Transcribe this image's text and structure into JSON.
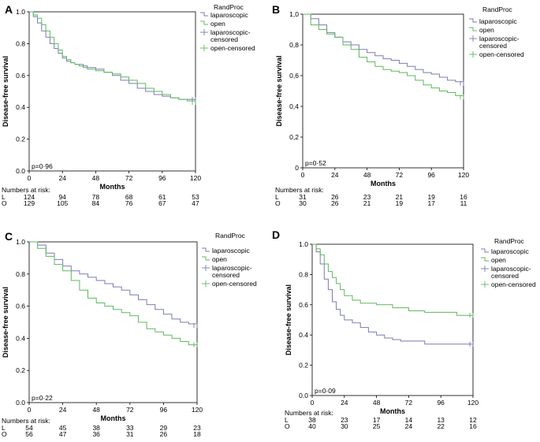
{
  "colors": {
    "laparoscopic": "#7b7bb5",
    "open": "#5fb85f",
    "axis": "#000000"
  },
  "shared": {
    "x_label": "Months",
    "y_label": "Disease-free survival",
    "legend_title": "RandProc",
    "legend_entries": [
      "laparoscopic",
      "open",
      "laparoscopic-censored",
      "open-censored"
    ],
    "legend_entries_display": [
      [
        "laparoscopic"
      ],
      [
        "open"
      ],
      [
        "laparoscopic-",
        "censored"
      ],
      [
        "open-censored"
      ]
    ],
    "risk_header": "Numbers at risk:",
    "risk_row_labels": [
      "L",
      "O"
    ]
  },
  "chart_data": [
    {
      "panel": "A",
      "type": "line",
      "pvalue": "p=0·96",
      "xlim": [
        0,
        120
      ],
      "ylim": [
        0,
        1.0
      ],
      "xticks": [
        0,
        24,
        48,
        72,
        96,
        120
      ],
      "yticks": [
        "0.0",
        "0.2",
        "0.4",
        "0.6",
        "0.8",
        "1.0"
      ],
      "grid": false,
      "legend_position": "right",
      "risk": {
        "L": [
          124,
          94,
          78,
          68,
          61,
          53
        ],
        "O": [
          129,
          105,
          84,
          76,
          67,
          47
        ]
      },
      "series": [
        {
          "name": "laparoscopic",
          "x": [
            0,
            3,
            6,
            9,
            12,
            15,
            18,
            21,
            24,
            27,
            30,
            33,
            36,
            39,
            42,
            45,
            48,
            54,
            60,
            66,
            72,
            78,
            84,
            90,
            96,
            102,
            108,
            114,
            120
          ],
          "y": [
            1.0,
            0.97,
            0.93,
            0.88,
            0.84,
            0.8,
            0.77,
            0.74,
            0.71,
            0.69,
            0.68,
            0.67,
            0.67,
            0.66,
            0.65,
            0.65,
            0.64,
            0.62,
            0.6,
            0.57,
            0.55,
            0.52,
            0.5,
            0.48,
            0.47,
            0.46,
            0.45,
            0.45,
            0.45
          ]
        },
        {
          "name": "open",
          "x": [
            0,
            3,
            6,
            9,
            12,
            15,
            18,
            21,
            24,
            27,
            30,
            33,
            36,
            39,
            42,
            45,
            48,
            54,
            60,
            66,
            72,
            78,
            84,
            90,
            96,
            102,
            108,
            114,
            120
          ],
          "y": [
            1.0,
            0.98,
            0.96,
            0.92,
            0.88,
            0.84,
            0.8,
            0.76,
            0.72,
            0.7,
            0.68,
            0.67,
            0.66,
            0.65,
            0.64,
            0.64,
            0.63,
            0.62,
            0.61,
            0.59,
            0.57,
            0.55,
            0.52,
            0.5,
            0.48,
            0.46,
            0.45,
            0.44,
            0.43
          ]
        }
      ]
    },
    {
      "panel": "B",
      "type": "line",
      "pvalue": "p=0·52",
      "xlim": [
        0,
        120
      ],
      "ylim": [
        0,
        1.0
      ],
      "xticks": [
        0,
        24,
        48,
        72,
        96,
        120
      ],
      "yticks": [
        "0",
        "0,2",
        "0,4",
        "0,6",
        "0,8",
        "1,0"
      ],
      "grid": false,
      "legend_position": "right",
      "risk": {
        "L": [
          31,
          26,
          23,
          21,
          19,
          16
        ],
        "O": [
          30,
          26,
          21,
          19,
          17,
          11
        ]
      },
      "series": [
        {
          "name": "laparoscopic",
          "x": [
            0,
            6,
            12,
            18,
            24,
            30,
            36,
            42,
            48,
            54,
            60,
            66,
            72,
            78,
            84,
            90,
            96,
            102,
            108,
            114,
            120
          ],
          "y": [
            1.0,
            0.97,
            0.93,
            0.88,
            0.85,
            0.82,
            0.8,
            0.77,
            0.75,
            0.73,
            0.71,
            0.7,
            0.68,
            0.66,
            0.64,
            0.62,
            0.61,
            0.59,
            0.57,
            0.56,
            0.55
          ]
        },
        {
          "name": "open",
          "x": [
            0,
            6,
            12,
            18,
            24,
            30,
            36,
            42,
            48,
            54,
            60,
            66,
            72,
            78,
            84,
            90,
            96,
            102,
            108,
            114,
            120
          ],
          "y": [
            1.0,
            0.93,
            0.9,
            0.87,
            0.85,
            0.8,
            0.77,
            0.72,
            0.69,
            0.66,
            0.64,
            0.63,
            0.62,
            0.6,
            0.57,
            0.54,
            0.52,
            0.5,
            0.49,
            0.47,
            0.46
          ]
        }
      ]
    },
    {
      "panel": "C",
      "type": "line",
      "pvalue": "p=0·22",
      "xlim": [
        0,
        120
      ],
      "ylim": [
        0,
        1.0
      ],
      "xticks": [
        0,
        24,
        48,
        72,
        96,
        120
      ],
      "yticks": [
        "0.0",
        "0.2",
        "0.4",
        "0.6",
        "0.8",
        "1.0"
      ],
      "grid": false,
      "legend_position": "right",
      "risk": {
        "L": [
          54,
          45,
          38,
          33,
          29,
          23
        ],
        "O": [
          56,
          47,
          36,
          31,
          26,
          18
        ]
      },
      "series": [
        {
          "name": "laparoscopic",
          "x": [
            0,
            6,
            12,
            18,
            24,
            30,
            36,
            42,
            48,
            54,
            60,
            66,
            72,
            78,
            84,
            90,
            96,
            102,
            108,
            114,
            120
          ],
          "y": [
            1.0,
            0.98,
            0.93,
            0.89,
            0.85,
            0.82,
            0.8,
            0.78,
            0.76,
            0.74,
            0.72,
            0.7,
            0.67,
            0.64,
            0.61,
            0.58,
            0.55,
            0.52,
            0.5,
            0.49,
            0.48
          ]
        },
        {
          "name": "open",
          "x": [
            0,
            6,
            12,
            18,
            24,
            30,
            36,
            42,
            48,
            54,
            60,
            66,
            72,
            78,
            84,
            90,
            96,
            102,
            108,
            114,
            120
          ],
          "y": [
            1.0,
            0.96,
            0.91,
            0.86,
            0.82,
            0.76,
            0.7,
            0.65,
            0.62,
            0.6,
            0.58,
            0.56,
            0.54,
            0.5,
            0.46,
            0.44,
            0.42,
            0.4,
            0.38,
            0.36,
            0.36
          ]
        }
      ]
    },
    {
      "panel": "D",
      "type": "line",
      "pvalue": "p=0·09",
      "xlim": [
        0,
        120
      ],
      "ylim": [
        0,
        1.0
      ],
      "xticks": [
        0,
        24,
        48,
        72,
        96,
        120
      ],
      "yticks": [
        "0.0",
        "0.2",
        "0.4",
        "0.6",
        "0.8",
        "1.0"
      ],
      "grid": false,
      "legend_position": "right",
      "risk": {
        "L": [
          38,
          23,
          17,
          14,
          13,
          12
        ],
        "O": [
          40,
          30,
          25,
          24,
          22,
          16
        ]
      },
      "series": [
        {
          "name": "laparoscopic",
          "x": [
            0,
            3,
            6,
            9,
            12,
            15,
            18,
            21,
            24,
            30,
            36,
            42,
            48,
            54,
            60,
            66,
            72,
            84,
            96,
            108,
            120
          ],
          "y": [
            1.0,
            0.95,
            0.87,
            0.77,
            0.7,
            0.62,
            0.57,
            0.53,
            0.5,
            0.48,
            0.45,
            0.42,
            0.4,
            0.38,
            0.37,
            0.36,
            0.36,
            0.34,
            0.34,
            0.34,
            0.34
          ]
        },
        {
          "name": "open",
          "x": [
            0,
            3,
            6,
            9,
            12,
            15,
            18,
            21,
            24,
            30,
            36,
            42,
            48,
            54,
            60,
            66,
            72,
            84,
            96,
            108,
            120
          ],
          "y": [
            1.0,
            0.97,
            0.93,
            0.87,
            0.82,
            0.78,
            0.74,
            0.7,
            0.66,
            0.63,
            0.61,
            0.61,
            0.6,
            0.6,
            0.58,
            0.58,
            0.56,
            0.55,
            0.55,
            0.53,
            0.53
          ]
        }
      ]
    }
  ]
}
